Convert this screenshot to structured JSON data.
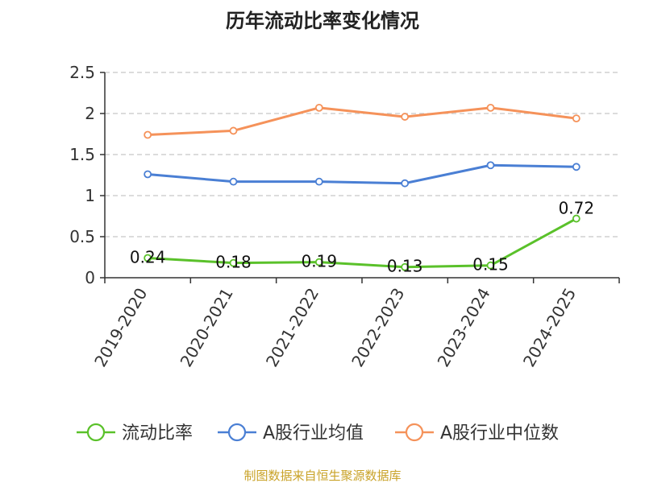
{
  "chart_data": {
    "type": "line",
    "title": "历年流动比率变化情况",
    "categories": [
      "2019-2020",
      "2020-2021",
      "2021-2022",
      "2022-2023",
      "2023-2024",
      "2024-2025"
    ],
    "ylim": [
      0,
      2.5
    ],
    "yticks": [
      "0",
      "0.5",
      "1",
      "1.5",
      "2",
      "2.5"
    ],
    "grid": true,
    "legend_position": "bottom",
    "series": [
      {
        "name": "流动比率",
        "color": "#5ac12a",
        "values": [
          0.24,
          0.18,
          0.19,
          0.13,
          0.15,
          0.72
        ],
        "labels": [
          "0.24",
          "0.18",
          "0.19",
          "0.13",
          "0.15",
          "0.72"
        ]
      },
      {
        "name": "A股行业均值",
        "color": "#4a7fd4",
        "values": [
          1.26,
          1.17,
          1.17,
          1.15,
          1.37,
          1.35
        ]
      },
      {
        "name": "A股行业中位数",
        "color": "#f5925a",
        "values": [
          1.74,
          1.79,
          2.07,
          1.96,
          2.07,
          1.94
        ]
      }
    ]
  },
  "footer": {
    "source": "制图数据来自恒生聚源数据库"
  }
}
